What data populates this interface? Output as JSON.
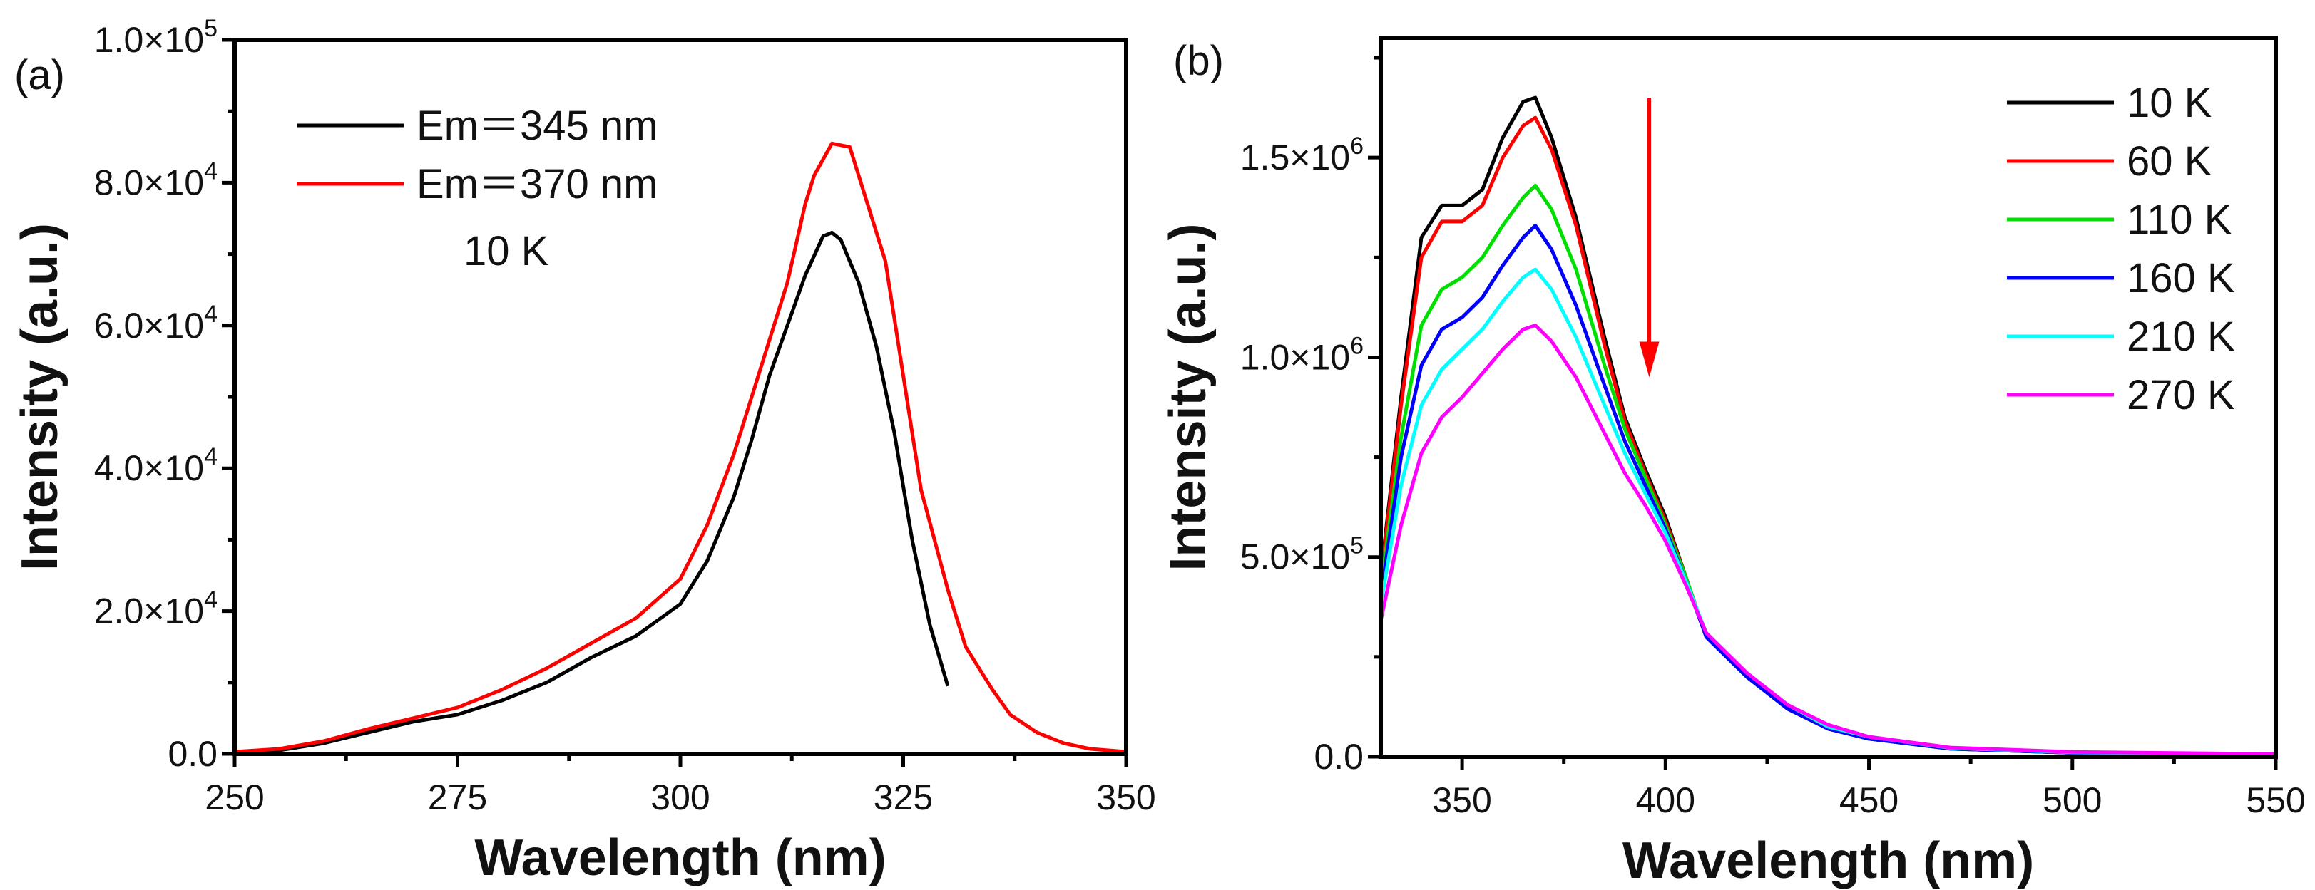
{
  "chart_data": [
    {
      "panel_label": "(a)",
      "type": "line",
      "xlabel": "Wavelength (nm)",
      "ylabel": "Intensity (a.u.)",
      "xlim": [
        250,
        350
      ],
      "ylim": [
        0,
        100000
      ],
      "xticks": [
        250,
        275,
        300,
        325,
        350
      ],
      "yticks": [
        {
          "value": 0,
          "mantissa": "0.0",
          "exp": ""
        },
        {
          "value": 20000,
          "mantissa": "2.0×10",
          "exp": "4"
        },
        {
          "value": 40000,
          "mantissa": "4.0×10",
          "exp": "4"
        },
        {
          "value": 60000,
          "mantissa": "6.0×10",
          "exp": "4"
        },
        {
          "value": 80000,
          "mantissa": "8.0×10",
          "exp": "4"
        },
        {
          "value": 100000,
          "mantissa": "1.0×10",
          "exp": "5"
        }
      ],
      "annotation": "10 K",
      "legend_position": "top-left",
      "series": [
        {
          "name": "Em＝345 nm",
          "color": "#000000",
          "x": [
            250,
            255,
            260,
            265,
            270,
            275,
            280,
            285,
            290,
            295,
            300,
            303,
            306,
            308,
            310,
            312,
            314,
            316,
            317,
            318,
            320,
            322,
            324,
            326,
            328,
            330
          ],
          "y": [
            300,
            500,
            1500,
            3000,
            4500,
            5500,
            7500,
            10000,
            13500,
            16500,
            21000,
            27000,
            36000,
            44000,
            53000,
            60000,
            67000,
            72500,
            73000,
            72000,
            66000,
            57000,
            45000,
            30000,
            18000,
            9500
          ]
        },
        {
          "name": "Em＝370 nm",
          "color": "#ff0000",
          "x": [
            250,
            255,
            260,
            265,
            270,
            275,
            280,
            285,
            290,
            295,
            300,
            303,
            306,
            308,
            310,
            312,
            314,
            315,
            317,
            319,
            321,
            323,
            325,
            327,
            330,
            332,
            335,
            337,
            340,
            343,
            346,
            350
          ],
          "y": [
            300,
            700,
            1800,
            3500,
            5000,
            6500,
            9000,
            12000,
            15500,
            19000,
            24500,
            32000,
            42000,
            50000,
            58000,
            66000,
            77000,
            81000,
            85500,
            85000,
            77000,
            69000,
            53000,
            37000,
            23000,
            15000,
            9000,
            5500,
            3000,
            1500,
            700,
            300
          ]
        }
      ]
    },
    {
      "panel_label": "(b)",
      "type": "line",
      "xlabel": "Wavelength (nm)",
      "ylabel": "Intensity (a.u.)",
      "xlim": [
        330,
        550
      ],
      "ylim": [
        0,
        1800000
      ],
      "xticks": [
        350,
        400,
        450,
        500,
        550
      ],
      "yticks": [
        {
          "value": 0,
          "mantissa": "0.0",
          "exp": ""
        },
        {
          "value": 500000,
          "mantissa": "5.0×10",
          "exp": "5"
        },
        {
          "value": 1000000,
          "mantissa": "1.0×10",
          "exp": "6"
        },
        {
          "value": 1500000,
          "mantissa": "1.5×10",
          "exp": "6"
        }
      ],
      "annotation_arrow": {
        "color": "#ff0000",
        "x": 396,
        "y_from": 1650000,
        "y_to": 950000,
        "meaning": "decreasing with temperature"
      },
      "legend_position": "top-right",
      "y_unit": 1000000,
      "x": [
        330,
        335,
        340,
        345,
        350,
        355,
        360,
        365,
        368,
        372,
        378,
        385,
        390,
        395,
        400,
        405,
        410,
        420,
        430,
        440,
        450,
        470,
        500,
        550
      ],
      "series": [
        {
          "name": "10 K",
          "color": "#000000",
          "y": [
            0.45,
            0.9,
            1.3,
            1.38,
            1.38,
            1.42,
            1.55,
            1.64,
            1.65,
            1.55,
            1.35,
            1.05,
            0.85,
            0.72,
            0.6,
            0.45,
            0.3,
            0.2,
            0.12,
            0.07,
            0.045,
            0.02,
            0.01,
            0.005
          ]
        },
        {
          "name": "60 K",
          "color": "#ff0000",
          "y": [
            0.44,
            0.88,
            1.25,
            1.34,
            1.34,
            1.38,
            1.5,
            1.58,
            1.6,
            1.52,
            1.33,
            1.03,
            0.84,
            0.71,
            0.59,
            0.45,
            0.3,
            0.2,
            0.12,
            0.07,
            0.045,
            0.02,
            0.01,
            0.005
          ]
        },
        {
          "name": "110 K",
          "color": "#00e000",
          "y": [
            0.42,
            0.8,
            1.08,
            1.17,
            1.2,
            1.25,
            1.33,
            1.4,
            1.43,
            1.37,
            1.22,
            0.98,
            0.82,
            0.7,
            0.58,
            0.45,
            0.3,
            0.2,
            0.12,
            0.07,
            0.045,
            0.02,
            0.01,
            0.005
          ]
        },
        {
          "name": "160 K",
          "color": "#0000ff",
          "y": [
            0.4,
            0.75,
            0.98,
            1.07,
            1.1,
            1.15,
            1.23,
            1.3,
            1.33,
            1.27,
            1.13,
            0.93,
            0.79,
            0.68,
            0.57,
            0.44,
            0.3,
            0.2,
            0.12,
            0.07,
            0.045,
            0.02,
            0.01,
            0.005
          ]
        },
        {
          "name": "210 K",
          "color": "#00ffff",
          "y": [
            0.38,
            0.68,
            0.88,
            0.97,
            1.02,
            1.07,
            1.14,
            1.2,
            1.22,
            1.17,
            1.05,
            0.88,
            0.76,
            0.66,
            0.56,
            0.44,
            0.31,
            0.21,
            0.13,
            0.075,
            0.05,
            0.022,
            0.011,
            0.006
          ]
        },
        {
          "name": "270 K",
          "color": "#ff00ff",
          "y": [
            0.34,
            0.58,
            0.76,
            0.85,
            0.9,
            0.96,
            1.02,
            1.07,
            1.08,
            1.04,
            0.95,
            0.81,
            0.71,
            0.63,
            0.54,
            0.43,
            0.31,
            0.21,
            0.13,
            0.08,
            0.05,
            0.023,
            0.012,
            0.007
          ]
        }
      ]
    }
  ]
}
